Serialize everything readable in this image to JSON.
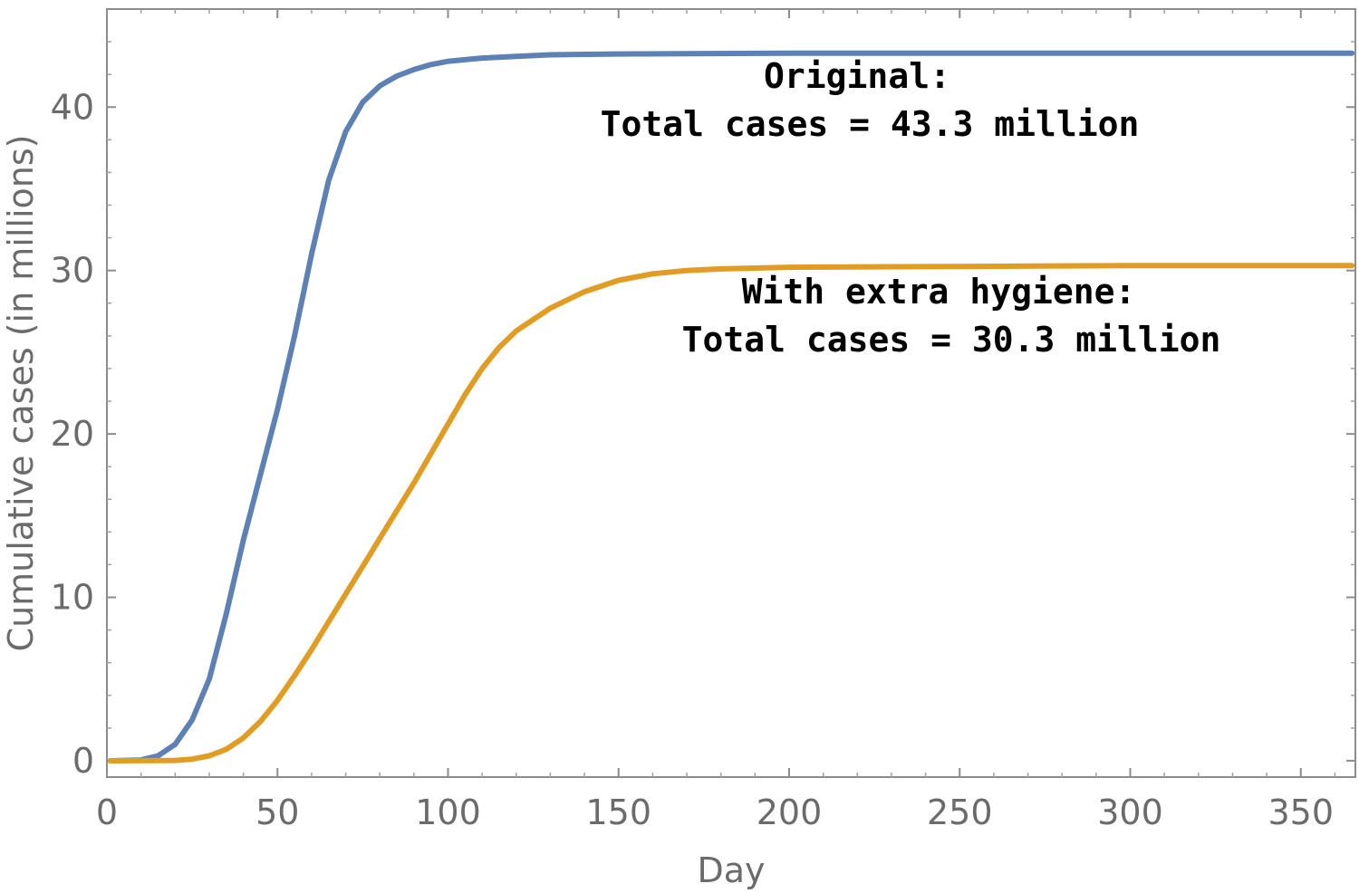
{
  "chart_data": {
    "type": "line",
    "xlabel": "Day",
    "ylabel": "Cumulative cases (in millions)",
    "xlim": [
      0,
      366
    ],
    "ylim": [
      -1,
      46
    ],
    "x_ticks": [
      0,
      50,
      100,
      150,
      200,
      250,
      300,
      350
    ],
    "y_ticks": [
      0,
      10,
      20,
      30,
      40
    ],
    "grid": false,
    "series": [
      {
        "color": "#5e81b5",
        "x": [
          1,
          10,
          15,
          20,
          25,
          30,
          35,
          40,
          45,
          50,
          55,
          60,
          65,
          70,
          75,
          80,
          85,
          90,
          95,
          100,
          110,
          120,
          130,
          150,
          200,
          300,
          365
        ],
        "y": [
          0,
          0.05,
          0.3,
          1.0,
          2.5,
          5.0,
          9.0,
          13.5,
          17.5,
          21.5,
          26.0,
          31.0,
          35.5,
          38.5,
          40.3,
          41.3,
          41.9,
          42.3,
          42.6,
          42.8,
          43.0,
          43.1,
          43.2,
          43.25,
          43.3,
          43.3,
          43.3
        ]
      },
      {
        "color": "#e19c24",
        "x": [
          1,
          20,
          25,
          30,
          35,
          40,
          45,
          50,
          55,
          60,
          65,
          70,
          75,
          80,
          85,
          90,
          95,
          100,
          105,
          110,
          115,
          120,
          130,
          140,
          150,
          160,
          170,
          180,
          200,
          250,
          300,
          365
        ],
        "y": [
          0,
          0.02,
          0.1,
          0.3,
          0.7,
          1.4,
          2.4,
          3.7,
          5.2,
          6.8,
          8.5,
          10.2,
          11.9,
          13.6,
          15.3,
          17.0,
          18.8,
          20.6,
          22.4,
          24.0,
          25.3,
          26.3,
          27.7,
          28.7,
          29.4,
          29.8,
          30.0,
          30.1,
          30.2,
          30.25,
          30.3,
          30.3
        ]
      }
    ],
    "annotations": [
      {
        "lines": [
          "Original:",
          "Total cases = 43.3 million"
        ]
      },
      {
        "lines": [
          "With extra hygiene:",
          "Total cases = 30.3 million"
        ]
      }
    ]
  }
}
